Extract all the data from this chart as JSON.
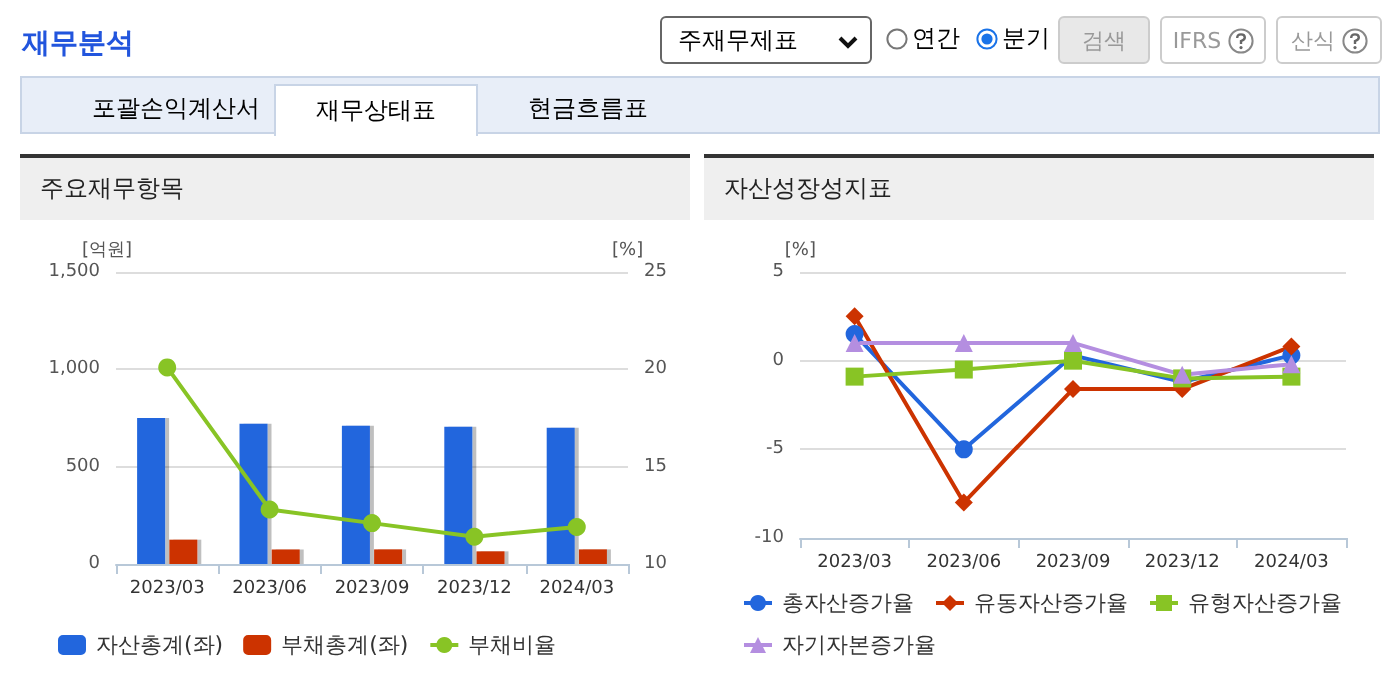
{
  "chart_data": [
    {
      "type": "other",
      "title": "재무분석",
      "annotations": [
        "주재무제표",
        "연간",
        "분기",
        "검색",
        "IFRS",
        "산식",
        "포괄손익계산서",
        "재무상태표",
        "현금흐름표"
      ]
    },
    {
      "type": "bar",
      "title": "주요재무항목",
      "ylabel": "[억원]",
      "y2label": "[%]",
      "categories": [
        "2023/03",
        "2023/06",
        "2023/09",
        "2023/12",
        "2024/03"
      ],
      "series": [
        {
          "name": "자산총계(좌)",
          "color": "#2266dd",
          "values": [
            750,
            720,
            710,
            705,
            700
          ]
        },
        {
          "name": "부채총계(좌)",
          "color": "#cc3300",
          "values": [
            125,
            75,
            75,
            65,
            75
          ]
        },
        {
          "name": "부채비율",
          "type": "line",
          "axis": "y2",
          "color": "#88c425",
          "marker": "circle",
          "values": [
            20.1,
            12.8,
            12.1,
            11.4,
            11.9
          ]
        }
      ],
      "ylim": [
        0,
        1500
      ],
      "yticks": [
        0,
        500,
        {
          "value": 1000,
          "label": "1,000"
        },
        {
          "value": 1500,
          "label": "1,500"
        }
      ],
      "y2lim": [
        10,
        25
      ],
      "y2ticks": [
        10,
        15,
        20,
        25
      ],
      "grid": "y",
      "legend": "bottom"
    },
    {
      "type": "line",
      "title": "자산성장성지표",
      "ylabel": "[%]",
      "categories": [
        "2023/03",
        "2023/06",
        "2023/09",
        "2023/12",
        "2024/03"
      ],
      "series": [
        {
          "name": "총자산증가율",
          "color": "#2266dd",
          "marker": "circle",
          "values": [
            1.5,
            -5.0,
            0.3,
            -1.2,
            0.3
          ]
        },
        {
          "name": "유동자산증가율",
          "color": "#cc3300",
          "marker": "diamond",
          "values": [
            2.5,
            -8.0,
            -1.6,
            -1.6,
            0.8
          ]
        },
        {
          "name": "유형자산증가율",
          "color": "#88c425",
          "marker": "square",
          "values": [
            -0.9,
            -0.5,
            0,
            -1.0,
            -0.9
          ]
        },
        {
          "name": "자기자본증가율",
          "color": "#b48ee0",
          "marker": "triangle",
          "values": [
            1.0,
            1.0,
            1.0,
            -0.8,
            -0.2
          ]
        }
      ],
      "ylim": [
        -10,
        5
      ],
      "yticks": [
        -10,
        -5,
        0,
        5
      ],
      "grid": "y",
      "legend": "bottom"
    }
  ]
}
